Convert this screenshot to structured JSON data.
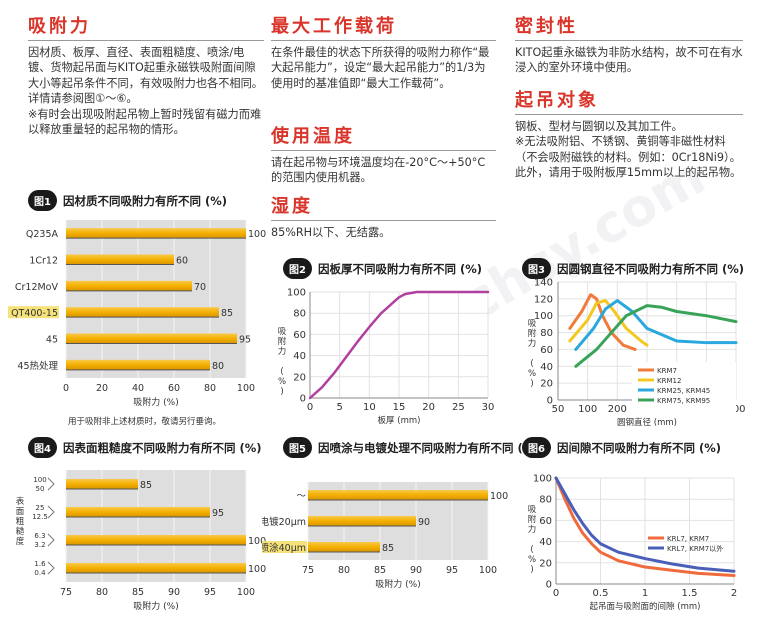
{
  "sections": {
    "adsorption": {
      "title": "吸附力",
      "body": "因材质、板厚、直径、表面粗糙度、喷涂/电镀、货物起吊面与KITO起重永磁铁吸附面间隙大小等起吊条件不同，有效吸附力也各不相同。详情请参阅图①～⑥。",
      "note": "※有时会出现吸附起吊物上暂时残留有磁力而难以释放重量轻的起吊物的情形。"
    },
    "maxload": {
      "title": "最大工作载荷",
      "body": "在条件最佳的状态下所获得的吸附力称作“最大起吊能力”，设定“最大起吊能力”的1/3为使用时的基准值即“最大工作载荷”。"
    },
    "temp": {
      "title": "使用温度",
      "body": "请在起吊物与环境温度均在-20°C～+50°C的范围内使用机器。"
    },
    "humidity": {
      "title": "湿度",
      "body": "85%RH以下、无结露。"
    },
    "seal": {
      "title": "密封性",
      "body": "KITO起重永磁铁为非防水结构，故不可在有水浸入的室外环境中使用。"
    },
    "objects": {
      "title": "起吊对象",
      "body": "钢板、型材与圆钢以及其加工件。",
      "note": "※无法吸附铝、不锈钢、黄铜等非磁性材料（不会吸附磁铁的材料。例如：0Cr18Ni9）。此外，请用于吸附板厚15mm以上的起吊物。"
    }
  },
  "watermark": "www.chsy.com",
  "chart_data": [
    {
      "id": "fig1",
      "badge": "图1",
      "type": "bar",
      "title": "因材质不同吸附力有所不同 (%)",
      "categories": [
        "Q235A",
        "1Cr12",
        "Cr12MoV",
        "QT400-15",
        "45",
        "45热处理"
      ],
      "values": [
        100,
        60,
        70,
        85,
        95,
        80
      ],
      "highlight": "QT400-15",
      "xlabel": "吸附力 (%)",
      "xlim": [
        0,
        100
      ],
      "xticks": [
        "0",
        "20",
        "40",
        "60",
        "80",
        "100"
      ],
      "footnote": "用于吸附非上述材质时，敬请另行垂询。"
    },
    {
      "id": "fig2",
      "badge": "图2",
      "type": "line",
      "title": "因板厚不同吸附力有所不同 (%)",
      "x": [
        0,
        2,
        4,
        6,
        8,
        10,
        12,
        14,
        15,
        16,
        18,
        20,
        25,
        30
      ],
      "y": [
        0,
        10,
        23,
        38,
        53,
        67,
        80,
        90,
        95,
        98,
        100,
        100,
        100,
        100
      ],
      "xlabel": "板厚 (mm)",
      "ylabel": "吸附力 (%)",
      "xlim": [
        0,
        30
      ],
      "ylim": [
        0,
        100
      ],
      "xticks": [
        "0",
        "5",
        "10",
        "15",
        "20",
        "25",
        "30"
      ],
      "yticks": [
        "0",
        "20",
        "40",
        "60",
        "80",
        "100"
      ],
      "color": "#b03fa0"
    },
    {
      "id": "fig3",
      "badge": "图3",
      "type": "line",
      "title": "因圆钢直径不同吸附力有所不同 (%)",
      "xlabel": "圆钢直径 (mm)",
      "ylabel": "吸附力 (%)",
      "xlim": [
        50,
        600
      ],
      "ylim": [
        0,
        140
      ],
      "xticks": [
        "50",
        "100",
        "200",
        "300",
        "400",
        "500",
        "600"
      ],
      "yticks": [
        "0",
        "20",
        "40",
        "60",
        "80",
        "100",
        "120",
        "140"
      ],
      "series": [
        {
          "name": "KRM7",
          "color": "#f07b3a",
          "x": [
            70,
            90,
            110,
            130,
            150,
            180,
            220,
            260
          ],
          "y": [
            85,
            105,
            125,
            120,
            100,
            80,
            65,
            60
          ]
        },
        {
          "name": "KRM12",
          "color": "#f3c820",
          "x": [
            70,
            100,
            130,
            160,
            190,
            230,
            280,
            300
          ],
          "y": [
            70,
            95,
            115,
            118,
            105,
            85,
            70,
            65
          ]
        },
        {
          "name": "KRM25, KRM45",
          "color": "#2aa7dd",
          "x": [
            80,
            120,
            160,
            200,
            250,
            300,
            400,
            500,
            600
          ],
          "y": [
            60,
            85,
            108,
            118,
            105,
            85,
            70,
            68,
            68
          ]
        },
        {
          "name": "KRM75, KRM95",
          "color": "#3aa35a",
          "x": [
            80,
            130,
            180,
            230,
            300,
            350,
            400,
            500,
            600
          ],
          "y": [
            40,
            60,
            80,
            100,
            112,
            110,
            105,
            100,
            93
          ]
        }
      ]
    },
    {
      "id": "fig4",
      "badge": "图4",
      "type": "bar",
      "title": "因表面粗糙度不同吸附力有所不同 (%)",
      "ylabel": "表面粗糙度",
      "categories": [
        "100 50",
        "25 12.5",
        "6.3 3.2",
        "1.6 0.4"
      ],
      "values": [
        85,
        95,
        100,
        100
      ],
      "xlabel": "吸附力 (%)",
      "xlim": [
        75,
        100
      ],
      "xticks": [
        "75",
        "80",
        "85",
        "90",
        "95",
        "100"
      ]
    },
    {
      "id": "fig5",
      "badge": "图5",
      "type": "bar",
      "title": "因喷涂与电镀处理不同吸附力有所不同 (%)",
      "categories": [
        "～",
        "电镀20μm",
        "喷涂40μm"
      ],
      "values": [
        100,
        90,
        85
      ],
      "highlight": "喷涂40μm",
      "xlabel": "吸附力 (%)",
      "xlim": [
        75,
        100
      ],
      "xticks": [
        "75",
        "80",
        "85",
        "90",
        "95",
        "100"
      ]
    },
    {
      "id": "fig6",
      "badge": "图6",
      "type": "line",
      "title": "因间隙不同吸附力有所不同 (%)",
      "xlabel": "起吊面与吸附面的间隙 (mm)",
      "ylabel": "吸附力 (%)",
      "xlim": [
        0,
        2
      ],
      "ylim": [
        0,
        100
      ],
      "xticks": [
        "0",
        "0.5",
        "1",
        "1.5",
        "2"
      ],
      "yticks": [
        "0",
        "20",
        "40",
        "60",
        "80",
        "100"
      ],
      "series": [
        {
          "name": "KRL7, KRM7",
          "color": "#ef6b3c",
          "x": [
            0,
            0.1,
            0.2,
            0.3,
            0.4,
            0.5,
            0.7,
            1.0,
            1.3,
            1.6,
            2.0
          ],
          "y": [
            100,
            80,
            62,
            48,
            38,
            30,
            22,
            16,
            13,
            10,
            8
          ]
        },
        {
          "name": "KRL7, KRM7以外",
          "color": "#4a5fb8",
          "x": [
            0,
            0.1,
            0.2,
            0.3,
            0.4,
            0.5,
            0.7,
            1.0,
            1.3,
            1.6,
            2.0
          ],
          "y": [
            100,
            85,
            70,
            57,
            46,
            38,
            30,
            24,
            19,
            15,
            12
          ]
        }
      ]
    }
  ]
}
